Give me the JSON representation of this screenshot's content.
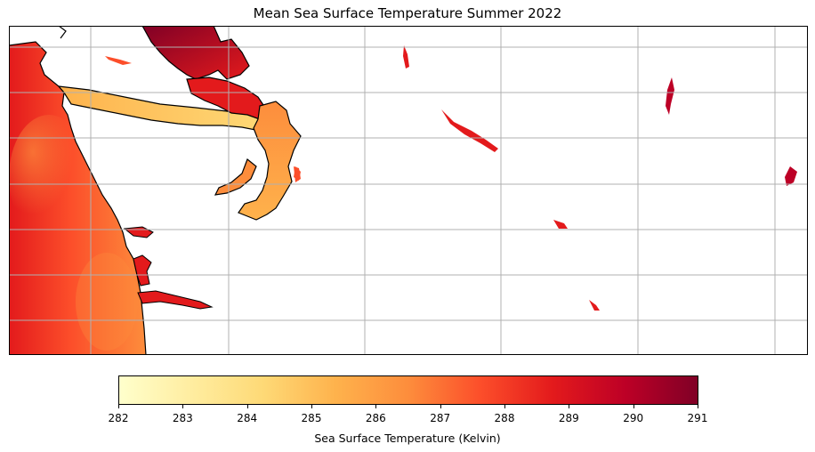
{
  "title": "Mean Sea Surface Temperature Summer 2022",
  "colorbar": {
    "label": "Sea Surface Temperature (Kelvin)",
    "min": 282,
    "max": 291,
    "ticks": [
      "282",
      "283",
      "284",
      "285",
      "286",
      "287",
      "288",
      "289",
      "290",
      "291"
    ],
    "colormap": "YlOrRd",
    "stops": [
      "#ffffcc",
      "#ffeda0",
      "#fed976",
      "#feb24c",
      "#fd8d3c",
      "#fc4e2a",
      "#e31a1c",
      "#bd0026",
      "#800026"
    ]
  },
  "map": {
    "gridlines": true,
    "ocean_land_mask": "white land, colored water"
  }
}
